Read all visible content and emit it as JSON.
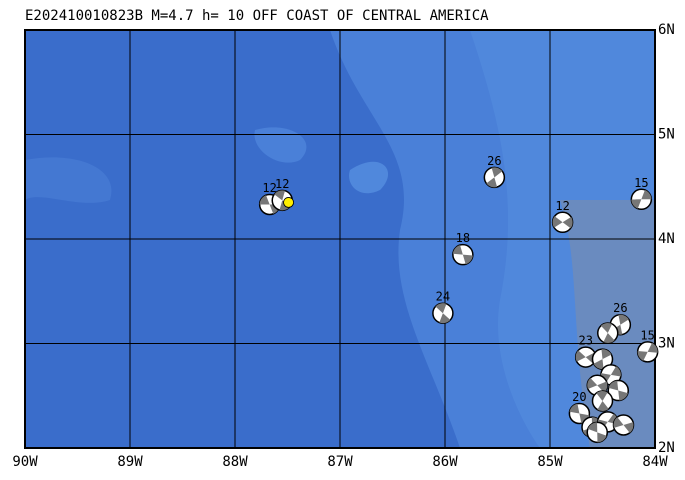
{
  "map": {
    "title": "E202410010823B M=4.7 h= 10 OFF COAST OF CENTRAL AMERICA",
    "xlim": [
      -90,
      -84
    ],
    "ylim": [
      2,
      6
    ],
    "xticks": [
      {
        "value": -90,
        "label": "90W"
      },
      {
        "value": -89,
        "label": "89W"
      },
      {
        "value": -88,
        "label": "88W"
      },
      {
        "value": -87,
        "label": "87W"
      },
      {
        "value": -86,
        "label": "86W"
      },
      {
        "value": -85,
        "label": "85W"
      },
      {
        "value": -84,
        "label": "84W"
      }
    ],
    "yticks": [
      {
        "value": 2,
        "label": "2N"
      },
      {
        "value": 3,
        "label": "3N"
      },
      {
        "value": 4,
        "label": "4N"
      },
      {
        "value": 5,
        "label": "5N"
      },
      {
        "value": 6,
        "label": "6N"
      }
    ],
    "epicenter": {
      "lon": -87.49,
      "lat": 4.35
    },
    "events": [
      {
        "label": "12",
        "lon": -87.67,
        "lat": 4.33
      },
      {
        "label": "12",
        "lon": -87.55,
        "lat": 4.37
      },
      {
        "label": "26",
        "lon": -85.53,
        "lat": 4.59
      },
      {
        "label": "15",
        "lon": -84.13,
        "lat": 4.38
      },
      {
        "label": "12",
        "lon": -84.88,
        "lat": 4.16
      },
      {
        "label": "18",
        "lon": -85.83,
        "lat": 3.85
      },
      {
        "label": "24",
        "lon": -86.02,
        "lat": 3.29
      },
      {
        "label": "26",
        "lon": -84.33,
        "lat": 3.18
      },
      {
        "label": "15",
        "lon": -84.07,
        "lat": 2.92
      },
      {
        "label": "23",
        "lon": -84.66,
        "lat": 2.87
      },
      {
        "label": "20",
        "lon": -84.72,
        "lat": 2.33
      },
      {
        "lon": -84.45,
        "lat": 3.1
      },
      {
        "lon": -84.5,
        "lat": 2.85
      },
      {
        "lon": -84.42,
        "lat": 2.7
      },
      {
        "lon": -84.55,
        "lat": 2.6
      },
      {
        "lon": -84.35,
        "lat": 2.55
      },
      {
        "lon": -84.5,
        "lat": 2.45
      },
      {
        "lon": -84.6,
        "lat": 2.2
      },
      {
        "lon": -84.45,
        "lat": 2.25
      },
      {
        "lon": -84.3,
        "lat": 2.22
      },
      {
        "lon": -84.55,
        "lat": 2.15
      }
    ]
  }
}
